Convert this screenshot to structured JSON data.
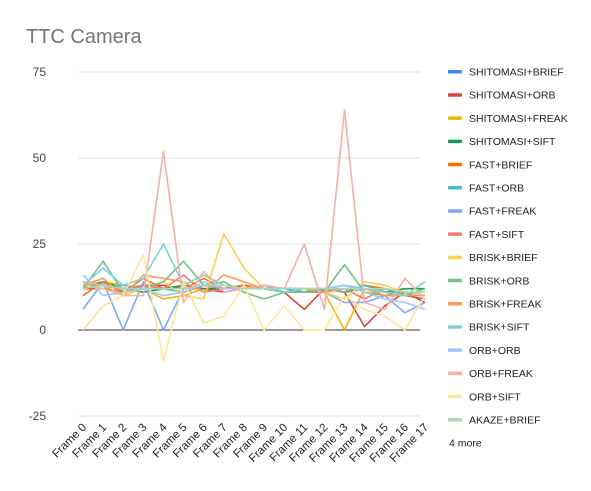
{
  "chart_data": {
    "type": "line",
    "title": "TTC Camera",
    "xlabel": "",
    "ylabel": "",
    "ylim": [
      -25,
      75
    ],
    "yticks": [
      75,
      50,
      25,
      0,
      -25
    ],
    "grid": true,
    "legend_position": "right",
    "legend_more": "4 more",
    "categories": [
      "Frame 0",
      "Frame 1",
      "Frame 2",
      "Frame 3",
      "Frame 4",
      "Frame 5",
      "Frame 6",
      "Frame 7",
      "Frame 8",
      "Frame 9",
      "Frame 10",
      "Frame 11",
      "Frame 12",
      "Frame 13",
      "Frame 14",
      "Frame 15",
      "Frame 16",
      "Frame 17"
    ],
    "series": [
      {
        "name": "SHITOMASI+BRIEF",
        "color": "#4285f4",
        "values": [
          14,
          13,
          12,
          13,
          12,
          11,
          13,
          12,
          13,
          12,
          12,
          11,
          12,
          11,
          13,
          11,
          10,
          9
        ]
      },
      {
        "name": "SHITOMASI+ORB",
        "color": "#db4437",
        "values": [
          12,
          12,
          11,
          13,
          13,
          12,
          12,
          11,
          12,
          12,
          11,
          6,
          12,
          11,
          1,
          7,
          11,
          8
        ]
      },
      {
        "name": "SHITOMASI+FREAK",
        "color": "#f4b400",
        "values": [
          13,
          14,
          13,
          12,
          9,
          10,
          12,
          12,
          12,
          13,
          12,
          12,
          11,
          0,
          12,
          10,
          11,
          10
        ]
      },
      {
        "name": "SHITOMASI+SIFT",
        "color": "#0f9d58",
        "values": [
          12,
          14,
          12,
          11,
          12,
          13,
          12,
          12,
          13,
          12,
          11,
          11,
          12,
          11,
          12,
          11,
          12,
          12
        ]
      },
      {
        "name": "FAST+BRIEF",
        "color": "#ff6d01",
        "values": [
          10,
          14,
          11,
          15,
          12,
          12,
          15,
          12,
          13,
          12,
          12,
          12,
          12,
          11,
          13,
          12,
          11,
          10
        ]
      },
      {
        "name": "FAST+ORB",
        "color": "#46bdc6",
        "values": [
          13,
          12,
          13,
          12,
          12,
          11,
          13,
          12,
          12,
          13,
          11,
          11,
          12,
          11,
          13,
          11,
          11,
          10
        ]
      },
      {
        "name": "FAST+FREAK",
        "color": "#7baaf7",
        "values": [
          6,
          14,
          0,
          14,
          0,
          12,
          13,
          12,
          12,
          13,
          12,
          12,
          11,
          8,
          8,
          10,
          5,
          8
        ]
      },
      {
        "name": "FAST+SIFT",
        "color": "#f07b72",
        "values": [
          12,
          13,
          12,
          13,
          12,
          16,
          11,
          12,
          12,
          13,
          12,
          12,
          11,
          12,
          9,
          12,
          11,
          10
        ]
      },
      {
        "name": "BRISK+BRIEF",
        "color": "#fcd04f",
        "values": [
          13,
          12,
          10,
          12,
          14,
          10,
          9,
          28,
          18,
          12,
          12,
          12,
          11,
          9,
          14,
          13,
          11,
          10
        ]
      },
      {
        "name": "BRISK+ORB",
        "color": "#71c287",
        "values": [
          12,
          20,
          11,
          12,
          14,
          20,
          13,
          14,
          11,
          9,
          11,
          11,
          11,
          19,
          11,
          10,
          10,
          12
        ]
      },
      {
        "name": "BRISK+FREAK",
        "color": "#ff994d",
        "values": [
          13,
          15,
          10,
          16,
          15,
          14,
          11,
          16,
          14,
          12,
          12,
          12,
          11,
          12,
          12,
          10,
          10,
          10
        ]
      },
      {
        "name": "BRISK+SIFT",
        "color": "#7ed1d7",
        "values": [
          13,
          18,
          13,
          15,
          25,
          13,
          16,
          13,
          12,
          12,
          11,
          12,
          12,
          13,
          12,
          11,
          10,
          14
        ]
      },
      {
        "name": "ORB+ORB",
        "color": "#a1c2fa",
        "values": [
          16,
          10,
          11,
          12,
          10,
          11,
          14,
          12,
          12,
          13,
          12,
          12,
          12,
          13,
          11,
          9,
          8,
          6
        ]
      },
      {
        "name": "ORB+FREAK",
        "color": "#f6aea9",
        "values": [
          14,
          13,
          10,
          10,
          52,
          8,
          17,
          11,
          12,
          13,
          12,
          25,
          6,
          64,
          8,
          6,
          15,
          9
        ]
      },
      {
        "name": "ORB+SIFT",
        "color": "#fde59a",
        "values": [
          0,
          7,
          10,
          22,
          -9,
          14,
          2,
          4,
          13,
          0,
          7,
          0,
          0,
          10,
          6,
          4,
          0,
          10
        ]
      },
      {
        "name": "AKAZE+BRIEF",
        "color": "#a8d8b9",
        "values": [
          12,
          13,
          12,
          12,
          12,
          12,
          13,
          13,
          12,
          12,
          12,
          12,
          12,
          12,
          12,
          12,
          11,
          11
        ]
      }
    ]
  }
}
